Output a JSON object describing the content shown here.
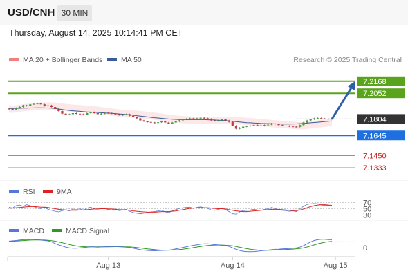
{
  "header": {
    "symbol": "USD/CNH",
    "timeframe": "30 MIN",
    "datetime": "Thursday, August 14, 2025 10:14:41 PM CET"
  },
  "colors": {
    "accent_blue": "#1e6fe0",
    "resistance_green": "#5aa31c",
    "support_red": "#ee6a6a",
    "ma50": "#3a5a9a",
    "bollinger": "#f08080",
    "candle_up": "#3f9f3a",
    "candle_down": "#c53a3a",
    "rsi_line": "#5577dd",
    "macd_line": "#5577dd",
    "macd_signal": "#2e9a1f",
    "arrow": "#2f5fa8"
  },
  "chart_data": {
    "type": "candlestick",
    "main": {
      "legend": [
        {
          "label": "MA 20 + Bollinger Bands",
          "color": "#f08080"
        },
        {
          "label": "MA 50",
          "color": "#3a5a9a"
        }
      ],
      "credit": "Research © 2025 Trading Central",
      "ylim": [
        7.128,
        7.224
      ],
      "x_ticks": [
        {
          "index": 28,
          "label": "Aug 13"
        },
        {
          "index": 63,
          "label": "Aug 14"
        },
        {
          "index": 92,
          "label": "Aug 15"
        }
      ],
      "price_levels": [
        {
          "value": 7.2168,
          "label": "7.2168",
          "role": "resistance",
          "color": "#5aa31c"
        },
        {
          "value": 7.2052,
          "label": "7.2052",
          "role": "resistance",
          "color": "#5aa31c"
        },
        {
          "value": 7.1804,
          "label": "7.1804",
          "role": "last_price",
          "color": "#333333"
        },
        {
          "value": 7.1645,
          "label": "7.1645",
          "role": "pivot",
          "color": "#1e6fe0"
        },
        {
          "value": 7.145,
          "label": "7.1450",
          "role": "support",
          "color": "#ee6a6a"
        },
        {
          "value": 7.1333,
          "label": "7.1333",
          "role": "support",
          "color": "#ee6a6a"
        }
      ],
      "close": [
        7.19,
        7.1895,
        7.191,
        7.192,
        7.1935,
        7.193,
        7.1945,
        7.195,
        7.1955,
        7.1945,
        7.193,
        7.1935,
        7.192,
        7.19,
        7.188,
        7.1855,
        7.1845,
        7.185,
        7.186,
        7.1855,
        7.185,
        7.1845,
        7.186,
        7.187,
        7.186,
        7.185,
        7.1855,
        7.1865,
        7.186,
        7.1855,
        7.185,
        7.184,
        7.1845,
        7.185,
        7.1835,
        7.182,
        7.181,
        7.179,
        7.178,
        7.1775,
        7.177,
        7.1768,
        7.1772,
        7.178,
        7.177,
        7.176,
        7.177,
        7.178,
        7.179,
        7.18,
        7.1805,
        7.181,
        7.1805,
        7.181,
        7.1815,
        7.181,
        7.1805,
        7.179,
        7.1785,
        7.179,
        7.18,
        7.179,
        7.1775,
        7.174,
        7.171,
        7.172,
        7.173,
        7.1735,
        7.174,
        7.1745,
        7.1742,
        7.1738,
        7.1745,
        7.175,
        7.176,
        7.1755,
        7.1745,
        7.174,
        7.1738,
        7.1732,
        7.173,
        7.1728,
        7.1745,
        7.177,
        7.179,
        7.18,
        7.181,
        7.1812,
        7.1808,
        7.1806,
        7.1805,
        7.1804
      ],
      "ma50": [
        7.1905,
        7.1905,
        7.1906,
        7.1907,
        7.1908,
        7.1909,
        7.191,
        7.1911,
        7.1912,
        7.1912,
        7.1911,
        7.191,
        7.1908,
        7.1905,
        7.19,
        7.1895,
        7.189,
        7.1886,
        7.1883,
        7.188,
        7.1877,
        7.1874,
        7.1872,
        7.187,
        7.1868,
        7.1866,
        7.1864,
        7.1862,
        7.186,
        7.1858,
        7.1856,
        7.1853,
        7.185,
        7.1847,
        7.1844,
        7.184,
        7.1836,
        7.1832,
        7.1828,
        7.1824,
        7.182,
        7.1816,
        7.1813,
        7.181,
        7.1807,
        7.1804,
        7.1802,
        7.18,
        7.1799,
        7.1798,
        7.1797,
        7.1797,
        7.1797,
        7.1797,
        7.1797,
        7.1797,
        7.1796,
        7.1795,
        7.1794,
        7.1792,
        7.179,
        7.1788,
        7.1785,
        7.1782,
        7.1778,
        7.1775,
        7.1772,
        7.1769,
        7.1767,
        7.1765,
        7.1763,
        7.1761,
        7.176,
        7.1759,
        7.1758,
        7.1757,
        7.1756,
        7.1755,
        7.1755,
        7.1755,
        7.1756,
        7.1757,
        7.1759,
        7.1761,
        7.1764,
        7.1767,
        7.177,
        7.1773,
        7.1776,
        7.1779,
        7.1782,
        7.1785
      ],
      "bollinger_width": 0.0035
    },
    "rsi": {
      "legend": [
        {
          "label": "RSI",
          "color": "#5577dd"
        },
        {
          "label": "9MA",
          "color": "#dd2222"
        }
      ],
      "ticks": [
        "70",
        "50",
        "30"
      ],
      "ylim": [
        20,
        80
      ],
      "rsi": [
        55,
        52,
        60,
        62,
        58,
        63,
        60,
        57,
        52,
        50,
        55,
        48,
        45,
        42,
        40,
        44,
        46,
        43,
        49,
        47,
        50,
        45,
        52,
        55,
        50,
        48,
        52,
        51,
        47,
        46,
        49,
        44,
        46,
        48,
        42,
        38,
        36,
        34,
        36,
        38,
        40,
        41,
        43,
        45,
        40,
        38,
        43,
        47,
        51,
        53,
        54,
        55,
        51,
        54,
        56,
        53,
        51,
        46,
        45,
        48,
        52,
        47,
        41,
        34,
        33,
        40,
        44,
        45,
        46,
        48,
        46,
        45,
        48,
        50,
        54,
        51,
        46,
        45,
        44,
        42,
        43,
        41,
        50,
        58,
        64,
        66,
        67,
        66,
        62,
        61,
        60,
        59
      ],
      "ma9": [
        52,
        52,
        53,
        54,
        55,
        56,
        57,
        57,
        56,
        55,
        55,
        54,
        52,
        50,
        48,
        47,
        46,
        45,
        45,
        45,
        46,
        46,
        47,
        48,
        49,
        49,
        50,
        50,
        49,
        49,
        48,
        47,
        47,
        46,
        45,
        43,
        42,
        41,
        40,
        39,
        39,
        39,
        40,
        41,
        41,
        41,
        42,
        43,
        45,
        47,
        49,
        51,
        52,
        53,
        53,
        53,
        53,
        52,
        51,
        50,
        50,
        49,
        47,
        45,
        43,
        42,
        41,
        41,
        42,
        43,
        44,
        45,
        46,
        47,
        48,
        48,
        48,
        47,
        46,
        45,
        44,
        44,
        46,
        49,
        53,
        57,
        60,
        62,
        63,
        63,
        62,
        61
      ]
    },
    "macd": {
      "legend": [
        {
          "label": "MACD",
          "color": "#5577dd"
        },
        {
          "label": "MACD Signal",
          "color": "#2e9a1f"
        }
      ],
      "ticks": [
        "0"
      ],
      "ylim": [
        -1.0,
        1.6
      ],
      "macd": [
        0.9,
        0.95,
        1.0,
        1.05,
        1.1,
        1.12,
        1.15,
        1.15,
        1.1,
        1.05,
        1.0,
        0.95,
        0.8,
        0.6,
        0.4,
        0.25,
        0.1,
        0.0,
        -0.05,
        -0.05,
        0.0,
        0.05,
        0.1,
        0.15,
        0.12,
        0.1,
        0.12,
        0.15,
        0.18,
        0.2,
        0.18,
        0.15,
        0.12,
        0.1,
        0.05,
        -0.05,
        -0.15,
        -0.25,
        -0.3,
        -0.35,
        -0.38,
        -0.4,
        -0.38,
        -0.35,
        -0.32,
        -0.3,
        -0.25,
        -0.15,
        -0.05,
        0.05,
        0.15,
        0.25,
        0.35,
        0.42,
        0.5,
        0.55,
        0.55,
        0.5,
        0.45,
        0.4,
        0.35,
        0.3,
        0.2,
        0.0,
        -0.2,
        -0.35,
        -0.45,
        -0.5,
        -0.52,
        -0.5,
        -0.45,
        -0.4,
        -0.35,
        -0.3,
        -0.25,
        -0.2,
        -0.18,
        -0.15,
        -0.12,
        -0.1,
        -0.05,
        0.0,
        0.1,
        0.3,
        0.55,
        0.8,
        1.0,
        1.1,
        1.15,
        1.15,
        1.12,
        1.1
      ],
      "signal": [
        0.85,
        0.88,
        0.92,
        0.95,
        0.99,
        1.02,
        1.05,
        1.07,
        1.08,
        1.07,
        1.05,
        1.02,
        0.98,
        0.9,
        0.8,
        0.7,
        0.58,
        0.46,
        0.35,
        0.26,
        0.2,
        0.16,
        0.14,
        0.14,
        0.14,
        0.13,
        0.13,
        0.13,
        0.14,
        0.15,
        0.16,
        0.16,
        0.15,
        0.14,
        0.12,
        0.09,
        0.04,
        -0.02,
        -0.08,
        -0.14,
        -0.19,
        -0.24,
        -0.28,
        -0.3,
        -0.31,
        -0.31,
        -0.3,
        -0.27,
        -0.23,
        -0.18,
        -0.12,
        -0.05,
        0.03,
        0.11,
        0.19,
        0.26,
        0.32,
        0.36,
        0.38,
        0.39,
        0.38,
        0.36,
        0.33,
        0.27,
        0.18,
        0.08,
        -0.02,
        -0.11,
        -0.19,
        -0.25,
        -0.29,
        -0.31,
        -0.32,
        -0.32,
        -0.31,
        -0.29,
        -0.27,
        -0.25,
        -0.22,
        -0.2,
        -0.17,
        -0.13,
        -0.08,
        0.0,
        0.11,
        0.25,
        0.4,
        0.54,
        0.66,
        0.76,
        0.83,
        0.88
      ]
    }
  }
}
